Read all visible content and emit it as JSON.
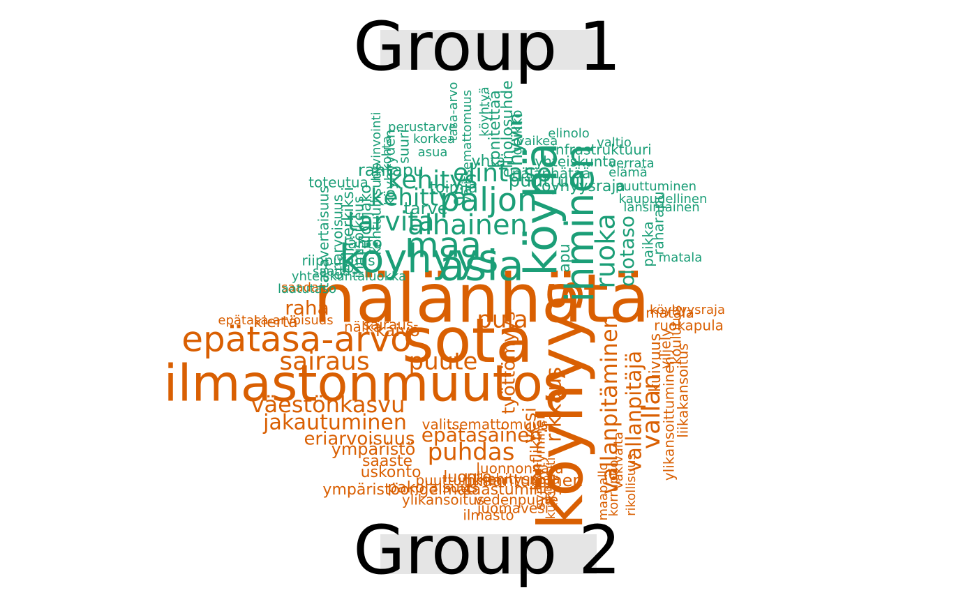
{
  "groups": {
    "top_label": "Group 1",
    "bottom_label": "Group 2"
  },
  "colors": {
    "group1": "#1b9e77",
    "group2": "#d95f02",
    "label_bg": "#e5e5e5"
  },
  "group1_words": [
    "köyhyys",
    "köyhä",
    "asia",
    "ihminen",
    "paljon",
    "tarvita",
    "alhainen",
    "ruoka",
    "kehitys",
    "kehittyä",
    "maa",
    "elintaso",
    "apu",
    "olotaso",
    "hyvin",
    "rahtapu",
    "toteutua",
    "perustarve",
    "korkea",
    "asua",
    "yhtä",
    "geikko",
    "elinolo",
    "valtio",
    "infrastruktuuri",
    "yhteiskunta",
    "verrata",
    "nälänhätää",
    "elämä",
    "köyhyysraja",
    "puuttuminen",
    "kaupudellinen",
    "länsimainen",
    "esimerkiksi",
    "tulonjako",
    "lähtö",
    "suuri",
    "köyhyyden",
    "kohtuullisuus",
    "tasavertaisuus",
    "eriarvoisuus",
    "ihmisoikeus",
    "laatutaso",
    "yhteiskuntaluokka",
    "saada",
    "riippuvuus",
    "paikka",
    "raharapu",
    "matala",
    "köyhtyä",
    "konitettää",
    "elinolosuhde",
    "vaikea",
    "kohta",
    "tarve",
    "hyvinvointi",
    "tasa-arvo",
    "valitsemattomuus",
    "puuttuu",
    "toimia"
  ],
  "group2_words": [
    "nälänhätä",
    "sota",
    "köyhyys",
    "ilmastonmuutos",
    "epätasa-arvo",
    "sairaus",
    "väestönkasvu",
    "jakautuminen",
    "eriarvoisuus",
    "saaste",
    "uskonto",
    "puhdas",
    "ympäristö",
    "likaantuminen",
    "ylikansoitus",
    "juomavesi",
    "vedenpuute",
    "ympäristöongelmat",
    "saastuminen",
    "luonnonvara",
    "kehitysmaa",
    "luonto",
    "kiertä",
    "epätasainen",
    "valitsemattomuus",
    "vallan",
    "vallanpitäjä",
    "kuivuus",
    "ylikansoittuminen",
    "liikakansoitus",
    "korruptio",
    "rikollisuus",
    "maapallo",
    "koulutus",
    "matala",
    "ruokapula",
    "nälkä",
    "väkivalta",
    "puute",
    "pula",
    "raha",
    "vallanpitäminen",
    "rikkaus",
    "konflikti",
    "saada",
    "epätasa-arvoisuus",
    "sairaus-",
    "kaivo",
    "puuttuminen",
    "työttömyys",
    "kulkutauti",
    "syrjäytyminen",
    "vesi",
    "viljely",
    "pakolaisuus",
    "ilmasto",
    "köyhyysraja"
  ]
}
